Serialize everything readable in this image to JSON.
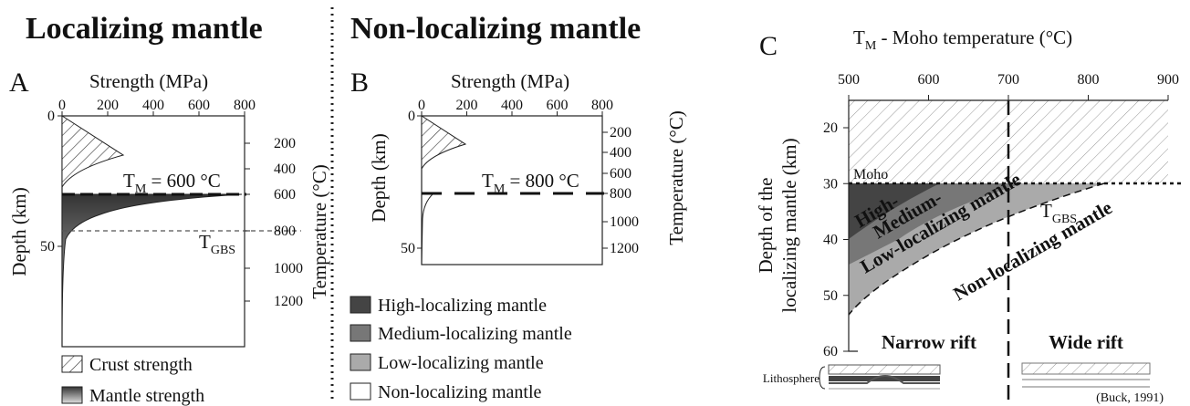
{
  "headings": {
    "left": "Localizing mantle",
    "right": "Non-localizing mantle"
  },
  "panel_a": {
    "letter": "A",
    "x_label": "Strength (MPa)",
    "x_ticks": [
      "0",
      "200",
      "400",
      "600",
      "800"
    ],
    "y_label": "Depth (km)",
    "y_ticks": [
      "0",
      "50"
    ],
    "y2_label": "Temperature (°C)",
    "y2_ticks": [
      "200",
      "400",
      "600",
      "800",
      "1000",
      "1200"
    ],
    "tm": {
      "t": "T",
      "sub": "M",
      "rest": " = 600 °C"
    },
    "tgbs": {
      "t": "T",
      "sub": "GBS"
    }
  },
  "panel_b": {
    "letter": "B",
    "x_label": "Strength (MPa)",
    "x_ticks": [
      "0",
      "200",
      "400",
      "600",
      "800"
    ],
    "y_label": "Depth (km)",
    "y_ticks": [
      "0",
      "50"
    ],
    "y2_label": "Temperature (°C)",
    "y2_ticks": [
      "200",
      "400",
      "600",
      "800",
      "1000",
      "1200"
    ],
    "tm": {
      "t": "T",
      "sub": "M",
      "rest": " = 800 °C"
    }
  },
  "legend_a": [
    "Crust strength",
    "Mantle strength"
  ],
  "legend_b": [
    "High-localizing mantle",
    "Medium-localizing mantle",
    "Low-localizing mantle",
    "Non-localizing mantle"
  ],
  "panel_c": {
    "letter": "C",
    "title": {
      "t": "T",
      "sub": "M",
      "rest": " - Moho temperature (°C)"
    },
    "x_ticks": [
      "500",
      "600",
      "700",
      "800",
      "900"
    ],
    "y_ticks": [
      "20",
      "30",
      "40",
      "50",
      "60"
    ],
    "y_label": [
      "Depth of the",
      "localizing mantle (km)"
    ],
    "moho": "Moho",
    "zones": [
      "High-",
      "Medium-",
      "Low-localizing mantle",
      "Non-localizing mantle"
    ],
    "tgbs": {
      "t": "T",
      "sub": "GBS"
    },
    "narrow": "Narrow rift",
    "wide": "Wide rift",
    "lithosphere": "Lithosphere",
    "citation": "(Buck, 1991)"
  }
}
